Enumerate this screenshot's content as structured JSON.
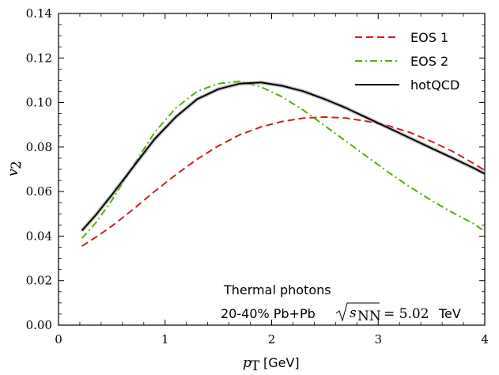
{
  "chart_data": {
    "type": "line",
    "xlim": [
      0,
      4
    ],
    "ylim": [
      0,
      0.14
    ],
    "xticks": [
      "0",
      "1",
      "2",
      "3",
      "4"
    ],
    "yticks": [
      "0.00",
      "0.02",
      "0.04",
      "0.06",
      "0.08",
      "0.10",
      "0.12",
      "0.14"
    ],
    "xlabel": {
      "var": "p",
      "sub": "T",
      "unit": "[GeV]"
    },
    "ylabel": {
      "var": "v",
      "sub": "2"
    },
    "legend_position": "top-right",
    "annotation": {
      "line1": "Thermal photons",
      "line2": "20-40% Pb+Pb",
      "sqrt_var": "s",
      "sqrt_sub": "NN",
      "equals": "= 5.02",
      "unit": "TeV"
    },
    "series": [
      {
        "name": "EOS 1",
        "color": "#cc1f1f",
        "dash": "dashed",
        "x": [
          0.22,
          0.35,
          0.5,
          0.7,
          0.9,
          1.1,
          1.3,
          1.5,
          1.7,
          1.9,
          2.1,
          2.3,
          2.5,
          2.7,
          2.9,
          3.1,
          3.3,
          3.5,
          3.7,
          3.9,
          4.0
        ],
        "y": [
          0.0355,
          0.0395,
          0.0445,
          0.052,
          0.06,
          0.0675,
          0.0745,
          0.0805,
          0.0855,
          0.089,
          0.0915,
          0.093,
          0.0935,
          0.093,
          0.0915,
          0.0895,
          0.0865,
          0.0825,
          0.078,
          0.0725,
          0.0695
        ]
      },
      {
        "name": "EOS 2",
        "color": "#4cb400",
        "dash": "dashdot",
        "x": [
          0.22,
          0.35,
          0.5,
          0.7,
          0.9,
          1.1,
          1.3,
          1.5,
          1.7,
          1.9,
          2.1,
          2.3,
          2.5,
          2.7,
          2.9,
          3.1,
          3.3,
          3.5,
          3.7,
          3.9,
          4.0
        ],
        "y": [
          0.039,
          0.046,
          0.056,
          0.0715,
          0.0865,
          0.0975,
          0.105,
          0.1085,
          0.1095,
          0.107,
          0.1025,
          0.0965,
          0.0895,
          0.0825,
          0.0755,
          0.0685,
          0.062,
          0.056,
          0.0505,
          0.0455,
          0.042
        ]
      },
      {
        "name": "hotQCD",
        "color": "#000000",
        "dash": "solid",
        "x": [
          0.22,
          0.35,
          0.5,
          0.7,
          0.9,
          1.1,
          1.3,
          1.5,
          1.7,
          1.9,
          2.1,
          2.3,
          2.5,
          2.7,
          2.9,
          3.1,
          3.3,
          3.5,
          3.7,
          3.9,
          4.0
        ],
        "y": [
          0.0425,
          0.0495,
          0.0585,
          0.071,
          0.0835,
          0.0935,
          0.1015,
          0.106,
          0.1085,
          0.109,
          0.1075,
          0.105,
          0.1015,
          0.0975,
          0.093,
          0.0885,
          0.084,
          0.0795,
          0.075,
          0.0705,
          0.068
        ]
      }
    ]
  }
}
